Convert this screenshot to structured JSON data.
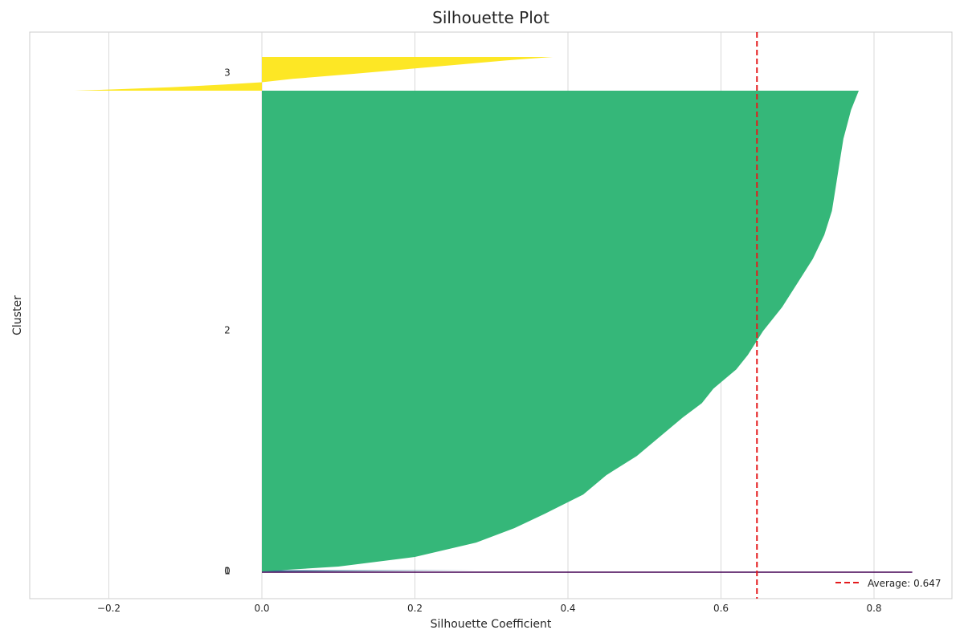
{
  "chart_data": {
    "type": "area",
    "title": "Silhouette Plot",
    "xlabel": "Silhouette Coefficient",
    "ylabel": "Cluster",
    "xlim": [
      -0.3,
      0.9
    ],
    "xticks": [
      -0.2,
      0.0,
      0.2,
      0.4,
      0.6,
      0.8
    ],
    "xtick_labels": [
      "−0.2",
      "0.0",
      "0.2",
      "0.4",
      "0.6",
      "0.8"
    ],
    "grid": true,
    "legend_position": "bottom-right",
    "average": {
      "value": 0.647,
      "label": "Average: 0.647",
      "color": "#e41a1c",
      "style": "dashed"
    },
    "clusters": [
      {
        "label": "0",
        "color": "#440154",
        "profile": [
          [
            0,
            0.85
          ],
          [
            1,
            0.85
          ]
        ]
      },
      {
        "label": "1",
        "color": "#31688e",
        "profile": [
          [
            0,
            0.28
          ],
          [
            0.5,
            0.15
          ],
          [
            1,
            0.02
          ]
        ]
      },
      {
        "label": "2",
        "color": "#35b779",
        "profile": [
          [
            0.0,
            0.78
          ],
          [
            0.02,
            0.775
          ],
          [
            0.04,
            0.77
          ],
          [
            0.07,
            0.765
          ],
          [
            0.1,
            0.76
          ],
          [
            0.15,
            0.755
          ],
          [
            0.2,
            0.75
          ],
          [
            0.25,
            0.745
          ],
          [
            0.3,
            0.735
          ],
          [
            0.35,
            0.72
          ],
          [
            0.4,
            0.7
          ],
          [
            0.45,
            0.68
          ],
          [
            0.5,
            0.655
          ],
          [
            0.55,
            0.635
          ],
          [
            0.58,
            0.62
          ],
          [
            0.62,
            0.59
          ],
          [
            0.65,
            0.575
          ],
          [
            0.68,
            0.55
          ],
          [
            0.72,
            0.52
          ],
          [
            0.76,
            0.49
          ],
          [
            0.8,
            0.45
          ],
          [
            0.84,
            0.42
          ],
          [
            0.88,
            0.37
          ],
          [
            0.91,
            0.33
          ],
          [
            0.94,
            0.28
          ],
          [
            0.97,
            0.2
          ],
          [
            0.99,
            0.1
          ],
          [
            1.0,
            0.0
          ]
        ]
      },
      {
        "label": "3",
        "color": "#fde725",
        "profile": [
          [
            0.0,
            0.38
          ],
          [
            0.1,
            0.32
          ],
          [
            0.3,
            0.22
          ],
          [
            0.5,
            0.12
          ],
          [
            0.65,
            0.04
          ],
          [
            0.75,
            0.0
          ],
          [
            0.82,
            -0.05
          ],
          [
            0.9,
            -0.12
          ],
          [
            0.96,
            -0.19
          ],
          [
            1.0,
            -0.245
          ]
        ]
      }
    ]
  }
}
